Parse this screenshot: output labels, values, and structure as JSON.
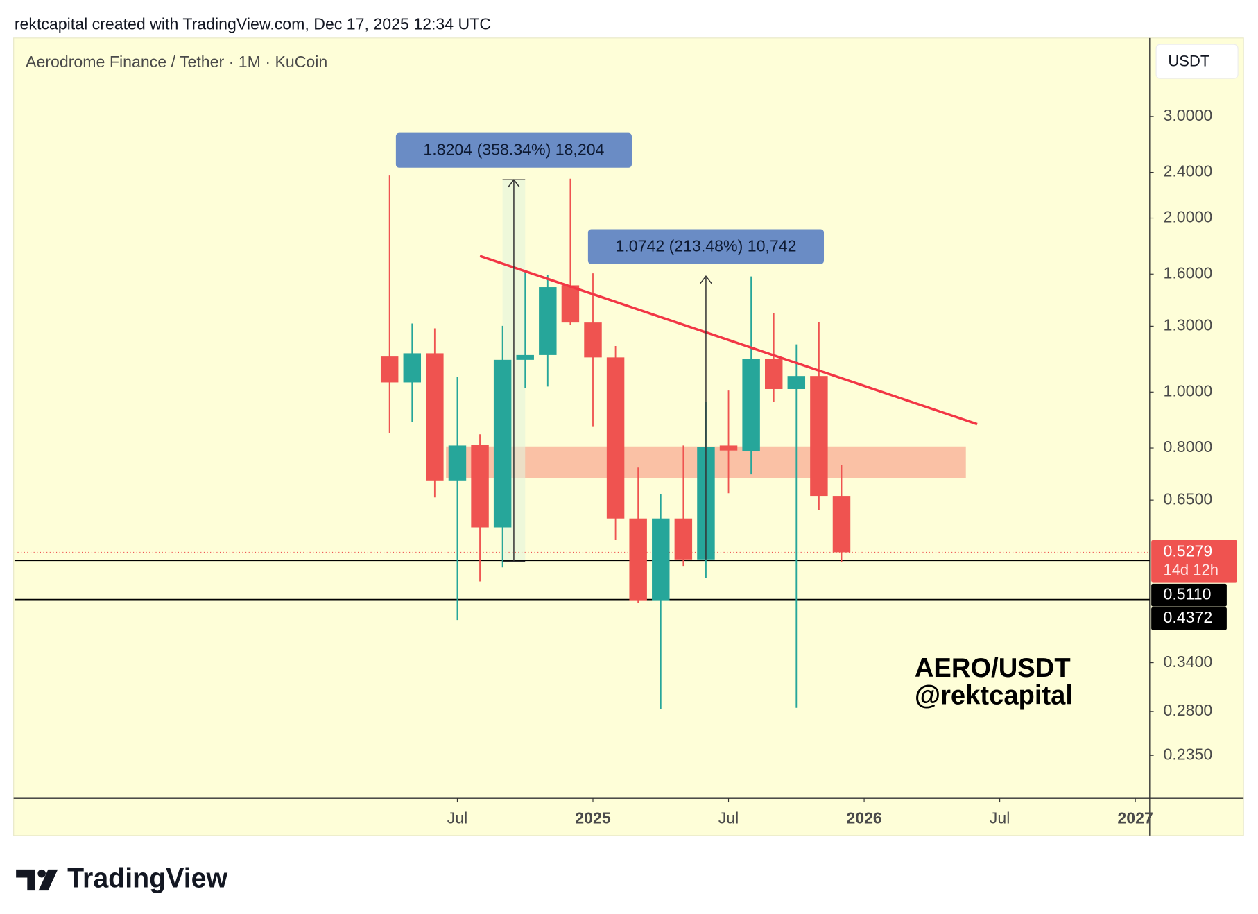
{
  "header": "rektcapital created with TradingView.com, Dec 17, 2025 12:34 UTC",
  "chart_data": {
    "type": "candlestick",
    "title": "Aerodrome Finance / Tether · 1M · KuCoin",
    "currency": "USDT",
    "x": [
      "2024-04",
      "2024-05",
      "2024-06",
      "2024-07",
      "2024-08",
      "2024-09",
      "2024-10",
      "2024-11",
      "2024-12",
      "2025-01",
      "2025-02",
      "2025-03",
      "2025-04",
      "2025-05",
      "2025-06",
      "2025-07",
      "2025-08",
      "2025-09",
      "2025-10",
      "2025-11",
      "2025-12"
    ],
    "open": [
      1.152,
      1.039,
      1.167,
      0.703,
      0.81,
      0.583,
      1.137,
      1.159,
      1.53,
      1.319,
      1.148,
      0.604,
      0.436,
      0.604,
      0.513,
      0.808,
      0.79,
      1.141,
      1.012,
      1.066,
      0.661
    ],
    "high": [
      2.37,
      1.314,
      1.289,
      1.062,
      0.845,
      1.302,
      1.621,
      1.595,
      2.34,
      1.605,
      1.201,
      0.74,
      0.666,
      0.808,
      0.962,
      1.006,
      1.585,
      1.371,
      1.209,
      1.323,
      0.748
    ],
    "low": [
      0.85,
      0.887,
      0.657,
      0.403,
      0.47,
      0.497,
      1.016,
      1.022,
      1.306,
      0.87,
      0.554,
      0.432,
      0.283,
      0.5,
      0.476,
      0.668,
      0.72,
      0.962,
      0.284,
      0.624,
      0.508
    ],
    "close": [
      1.039,
      1.167,
      0.703,
      0.808,
      0.583,
      1.137,
      1.159,
      1.519,
      1.319,
      1.148,
      0.604,
      0.436,
      0.604,
      0.513,
      0.803,
      0.792,
      1.141,
      1.012,
      1.066,
      0.661,
      0.5279
    ],
    "up_color": "#26a69a",
    "down_color": "#ef5350",
    "log_scale": true,
    "ylim": [
      0.198,
      4.1
    ],
    "yticks": [
      {
        "value": 3,
        "label": "3.0000"
      },
      {
        "value": 2.4,
        "label": "2.4000"
      },
      {
        "value": 2,
        "label": "2.0000"
      },
      {
        "value": 1.6,
        "label": "1.6000"
      },
      {
        "value": 1.3,
        "label": "1.3000"
      },
      {
        "value": 1,
        "label": "1.0000"
      },
      {
        "value": 0.8,
        "label": "0.8000"
      },
      {
        "value": 0.65,
        "label": "0.6500"
      },
      {
        "value": 0.34,
        "label": "0.3400"
      },
      {
        "value": 0.28,
        "label": "0.2800"
      },
      {
        "value": 0.235,
        "label": "0.2350"
      }
    ],
    "xlim": [
      "2022-12",
      "2027-02"
    ],
    "xticks": [
      {
        "value": "2024-07",
        "label": "Jul"
      },
      {
        "value": "2025-01",
        "label": "2025"
      },
      {
        "value": "2025-07",
        "label": "Jul"
      },
      {
        "value": "2026-01",
        "label": "2026"
      },
      {
        "value": "2026-07",
        "label": "Jul"
      },
      {
        "value": "2027-01",
        "label": "2027"
      }
    ],
    "last_price": {
      "value": 0.5279,
      "label": "0.5279",
      "countdown": "14d 12h"
    },
    "levels": [
      {
        "value": 0.511,
        "label": "0.5110"
      },
      {
        "value": 0.4372,
        "label": "0.4372"
      }
    ],
    "trendline": {
      "x": [
        "2024-08",
        "2026-06"
      ],
      "values": [
        1.72,
        0.88
      ]
    },
    "zone": {
      "x": [
        "2024-07",
        "2026-05"
      ],
      "values": [
        0.805,
        0.71
      ]
    },
    "measures": [
      {
        "x": [
          "2024-09",
          "2024-10"
        ],
        "values": [
          0.509,
          2.33
        ],
        "label": "1.8204 (358.34%) 18,204"
      },
      {
        "x": [
          "2025-06",
          "2025-06"
        ],
        "values": [
          0.513,
          1.587
        ],
        "label": "1.0742 (213.48%) 10,742"
      }
    ],
    "watermark": [
      "AERO/USDT",
      "@rektcapital"
    ]
  },
  "footer": "TradingView"
}
